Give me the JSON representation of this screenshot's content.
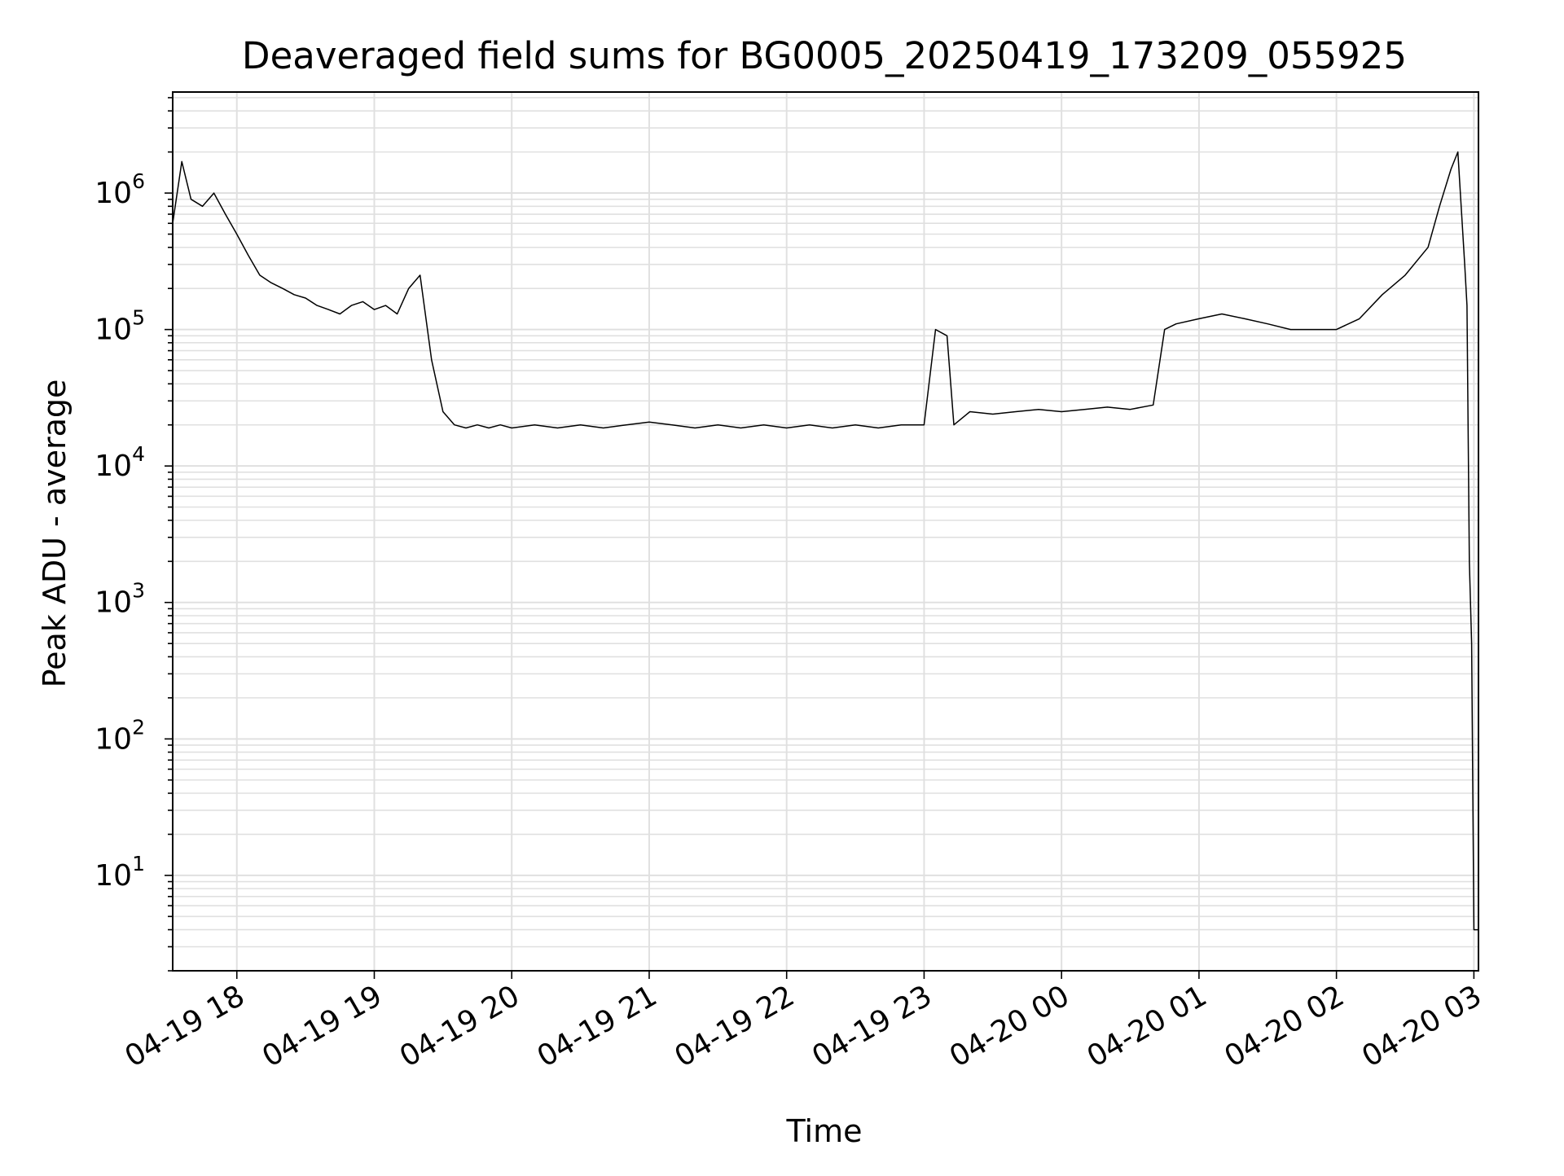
{
  "chart_data": {
    "type": "line",
    "title": "Deaveraged field sums for BG0005_20250419_173209_055925",
    "xlabel": "Time",
    "ylabel": "Peak ADU - average",
    "yscale": "log",
    "ylim": [
      2,
      5500000
    ],
    "xlim": [
      "2025-04-19T17:32:00",
      "2025-04-20T03:02:00"
    ],
    "grid": true,
    "line_color": "#000000",
    "grid_color": "#e0e0e0",
    "x_ticks": [
      {
        "t": "2025-04-19T18:00:00",
        "label": "04-19 18"
      },
      {
        "t": "2025-04-19T19:00:00",
        "label": "04-19 19"
      },
      {
        "t": "2025-04-19T20:00:00",
        "label": "04-19 20"
      },
      {
        "t": "2025-04-19T21:00:00",
        "label": "04-19 21"
      },
      {
        "t": "2025-04-19T22:00:00",
        "label": "04-19 22"
      },
      {
        "t": "2025-04-19T23:00:00",
        "label": "04-19 23"
      },
      {
        "t": "2025-04-20T00:00:00",
        "label": "04-20 00"
      },
      {
        "t": "2025-04-20T01:00:00",
        "label": "04-20 01"
      },
      {
        "t": "2025-04-20T02:00:00",
        "label": "04-20 02"
      },
      {
        "t": "2025-04-20T03:00:00",
        "label": "04-20 03"
      }
    ],
    "y_ticks": [
      {
        "value": 10,
        "base": "10",
        "exp": "1"
      },
      {
        "value": 100,
        "base": "10",
        "exp": "2"
      },
      {
        "value": 1000,
        "base": "10",
        "exp": "3"
      },
      {
        "value": 10000,
        "base": "10",
        "exp": "4"
      },
      {
        "value": 100000,
        "base": "10",
        "exp": "5"
      },
      {
        "value": 1000000,
        "base": "10",
        "exp": "6"
      }
    ],
    "series": [
      {
        "points": [
          [
            "2025-04-19T17:32:00",
            600000
          ],
          [
            "2025-04-19T17:36:00",
            1700000
          ],
          [
            "2025-04-19T17:40:00",
            900000
          ],
          [
            "2025-04-19T17:45:00",
            800000
          ],
          [
            "2025-04-19T17:50:00",
            1000000
          ],
          [
            "2025-04-19T17:55:00",
            700000
          ],
          [
            "2025-04-19T18:00:00",
            500000
          ],
          [
            "2025-04-19T18:05:00",
            350000
          ],
          [
            "2025-04-19T18:10:00",
            250000
          ],
          [
            "2025-04-19T18:15:00",
            220000
          ],
          [
            "2025-04-19T18:20:00",
            200000
          ],
          [
            "2025-04-19T18:25:00",
            180000
          ],
          [
            "2025-04-19T18:30:00",
            170000
          ],
          [
            "2025-04-19T18:35:00",
            150000
          ],
          [
            "2025-04-19T18:40:00",
            140000
          ],
          [
            "2025-04-19T18:45:00",
            130000
          ],
          [
            "2025-04-19T18:50:00",
            150000
          ],
          [
            "2025-04-19T18:55:00",
            160000
          ],
          [
            "2025-04-19T19:00:00",
            140000
          ],
          [
            "2025-04-19T19:05:00",
            150000
          ],
          [
            "2025-04-19T19:10:00",
            130000
          ],
          [
            "2025-04-19T19:15:00",
            200000
          ],
          [
            "2025-04-19T19:20:00",
            250000
          ],
          [
            "2025-04-19T19:25:00",
            60000
          ],
          [
            "2025-04-19T19:30:00",
            25000
          ],
          [
            "2025-04-19T19:35:00",
            20000
          ],
          [
            "2025-04-19T19:40:00",
            19000
          ],
          [
            "2025-04-19T19:45:00",
            20000
          ],
          [
            "2025-04-19T19:50:00",
            19000
          ],
          [
            "2025-04-19T19:55:00",
            20000
          ],
          [
            "2025-04-19T20:00:00",
            19000
          ],
          [
            "2025-04-19T20:10:00",
            20000
          ],
          [
            "2025-04-19T20:20:00",
            19000
          ],
          [
            "2025-04-19T20:30:00",
            20000
          ],
          [
            "2025-04-19T20:40:00",
            19000
          ],
          [
            "2025-04-19T20:50:00",
            20000
          ],
          [
            "2025-04-19T21:00:00",
            21000
          ],
          [
            "2025-04-19T21:10:00",
            20000
          ],
          [
            "2025-04-19T21:20:00",
            19000
          ],
          [
            "2025-04-19T21:30:00",
            20000
          ],
          [
            "2025-04-19T21:40:00",
            19000
          ],
          [
            "2025-04-19T21:50:00",
            20000
          ],
          [
            "2025-04-19T22:00:00",
            19000
          ],
          [
            "2025-04-19T22:10:00",
            20000
          ],
          [
            "2025-04-19T22:20:00",
            19000
          ],
          [
            "2025-04-19T22:30:00",
            20000
          ],
          [
            "2025-04-19T22:40:00",
            19000
          ],
          [
            "2025-04-19T22:50:00",
            20000
          ],
          [
            "2025-04-19T23:00:00",
            20000
          ],
          [
            "2025-04-19T23:05:00",
            100000
          ],
          [
            "2025-04-19T23:10:00",
            90000
          ],
          [
            "2025-04-19T23:13:00",
            20000
          ],
          [
            "2025-04-19T23:20:00",
            25000
          ],
          [
            "2025-04-19T23:30:00",
            24000
          ],
          [
            "2025-04-19T23:40:00",
            25000
          ],
          [
            "2025-04-19T23:50:00",
            26000
          ],
          [
            "2025-04-20T00:00:00",
            25000
          ],
          [
            "2025-04-20T00:10:00",
            26000
          ],
          [
            "2025-04-20T00:20:00",
            27000
          ],
          [
            "2025-04-20T00:30:00",
            26000
          ],
          [
            "2025-04-20T00:40:00",
            28000
          ],
          [
            "2025-04-20T00:45:00",
            100000
          ],
          [
            "2025-04-20T00:50:00",
            110000
          ],
          [
            "2025-04-20T01:00:00",
            120000
          ],
          [
            "2025-04-20T01:10:00",
            130000
          ],
          [
            "2025-04-20T01:20:00",
            120000
          ],
          [
            "2025-04-20T01:30:00",
            110000
          ],
          [
            "2025-04-20T01:40:00",
            100000
          ],
          [
            "2025-04-20T01:50:00",
            100000
          ],
          [
            "2025-04-20T02:00:00",
            100000
          ],
          [
            "2025-04-20T02:10:00",
            120000
          ],
          [
            "2025-04-20T02:20:00",
            180000
          ],
          [
            "2025-04-20T02:30:00",
            250000
          ],
          [
            "2025-04-20T02:40:00",
            400000
          ],
          [
            "2025-04-20T02:45:00",
            800000
          ],
          [
            "2025-04-20T02:50:00",
            1500000
          ],
          [
            "2025-04-20T02:53:00",
            2000000
          ],
          [
            "2025-04-20T02:56:00",
            300000
          ],
          [
            "2025-04-20T02:57:00",
            150000
          ],
          [
            "2025-04-20T02:58:00",
            2000
          ],
          [
            "2025-04-20T02:59:00",
            500
          ],
          [
            "2025-04-20T03:00:00",
            4
          ],
          [
            "2025-04-20T03:02:00",
            4
          ]
        ]
      }
    ]
  }
}
